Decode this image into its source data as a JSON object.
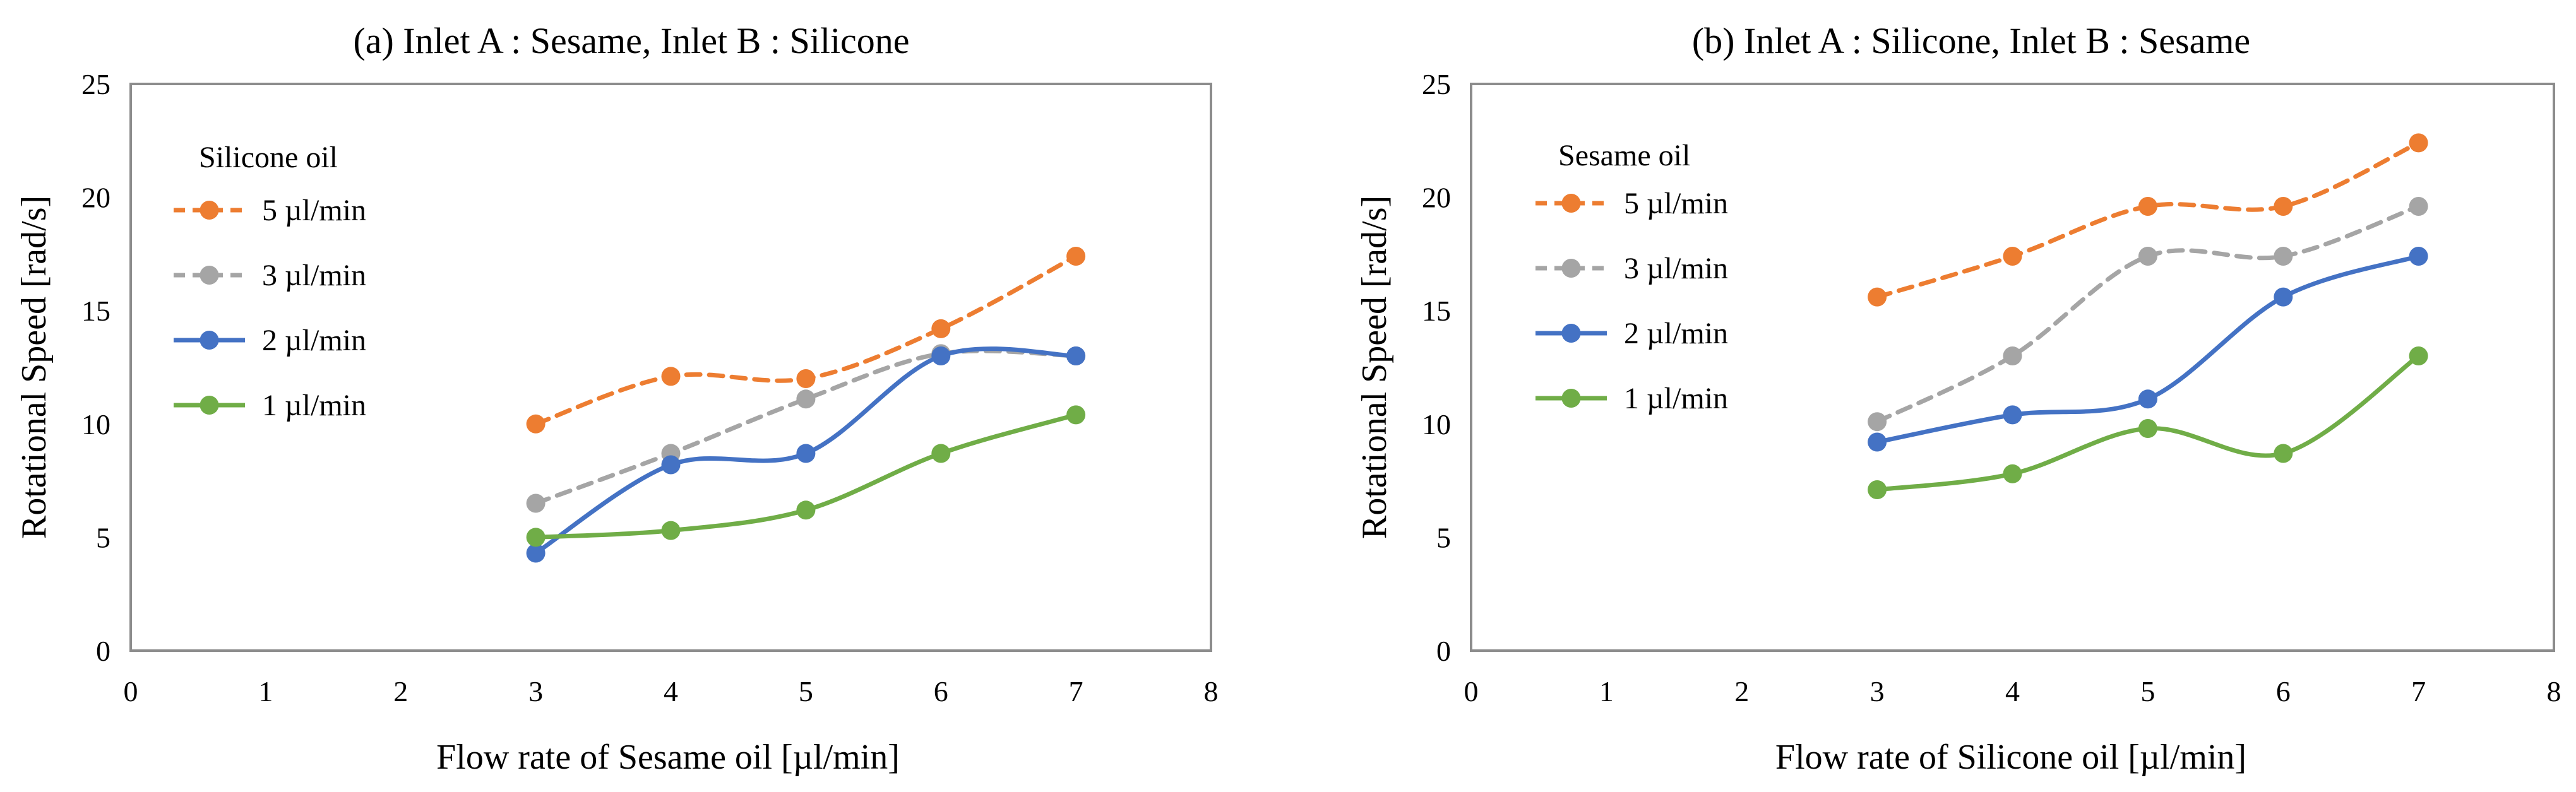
{
  "chart_data": [
    {
      "type": "line",
      "title": "(a) Inlet A : Sesame, Inlet B : Silicone",
      "xlabel": "Flow rate of Sesame oil [µl/min]",
      "ylabel": "Rotational Speed [rad/s]",
      "xlim": [
        0,
        8
      ],
      "ylim": [
        0,
        25
      ],
      "xticks": [
        "0",
        "1",
        "2",
        "3",
        "4",
        "5",
        "6",
        "7",
        "8"
      ],
      "yticks": [
        "0",
        "5",
        "10",
        "15",
        "20",
        "25"
      ],
      "grid": false,
      "legend_title": "Silicone oil",
      "legend_position": "top-left",
      "x": [
        3,
        4,
        5,
        6,
        7
      ],
      "series": [
        {
          "name": "5 µl/min",
          "values": [
            10.0,
            12.1,
            12.0,
            14.2,
            17.4
          ],
          "color": "#ED7D31",
          "style": "dashed"
        },
        {
          "name": "3 µl/min",
          "values": [
            6.5,
            8.7,
            11.1,
            13.1,
            13.0
          ],
          "color": "#A5A5A5",
          "style": "dashed"
        },
        {
          "name": "2 µl/min",
          "values": [
            4.3,
            8.2,
            8.7,
            13.0,
            13.0
          ],
          "color": "#4472C4",
          "style": "solid"
        },
        {
          "name": "1 µl/min",
          "values": [
            5.0,
            5.3,
            6.2,
            8.7,
            10.4
          ],
          "color": "#70AD47",
          "style": "solid"
        }
      ]
    },
    {
      "type": "line",
      "title": "(b) Inlet A : Silicone, Inlet B : Sesame",
      "xlabel": "Flow rate of Silicone oil [µl/min]",
      "ylabel": "Rotational Speed [rad/s]",
      "xlim": [
        0,
        8
      ],
      "ylim": [
        0,
        25
      ],
      "xticks": [
        "0",
        "1",
        "2",
        "3",
        "4",
        "5",
        "6",
        "7",
        "8"
      ],
      "yticks": [
        "0",
        "5",
        "10",
        "15",
        "20",
        "25"
      ],
      "grid": false,
      "legend_title": "Sesame oil",
      "legend_position": "top-left",
      "x": [
        3,
        4,
        5,
        6,
        7
      ],
      "series": [
        {
          "name": "5 µl/min",
          "values": [
            15.6,
            17.4,
            19.6,
            19.6,
            22.4
          ],
          "color": "#ED7D31",
          "style": "dashed"
        },
        {
          "name": "3 µl/min",
          "values": [
            10.1,
            13.0,
            17.4,
            17.4,
            19.6
          ],
          "color": "#A5A5A5",
          "style": "dashed"
        },
        {
          "name": "2 µl/min",
          "values": [
            9.2,
            10.4,
            11.1,
            15.6,
            17.4
          ],
          "color": "#4472C4",
          "style": "solid"
        },
        {
          "name": "1 µl/min",
          "values": [
            7.1,
            7.8,
            9.8,
            8.7,
            13.0
          ],
          "color": "#70AD47",
          "style": "solid"
        }
      ]
    }
  ]
}
